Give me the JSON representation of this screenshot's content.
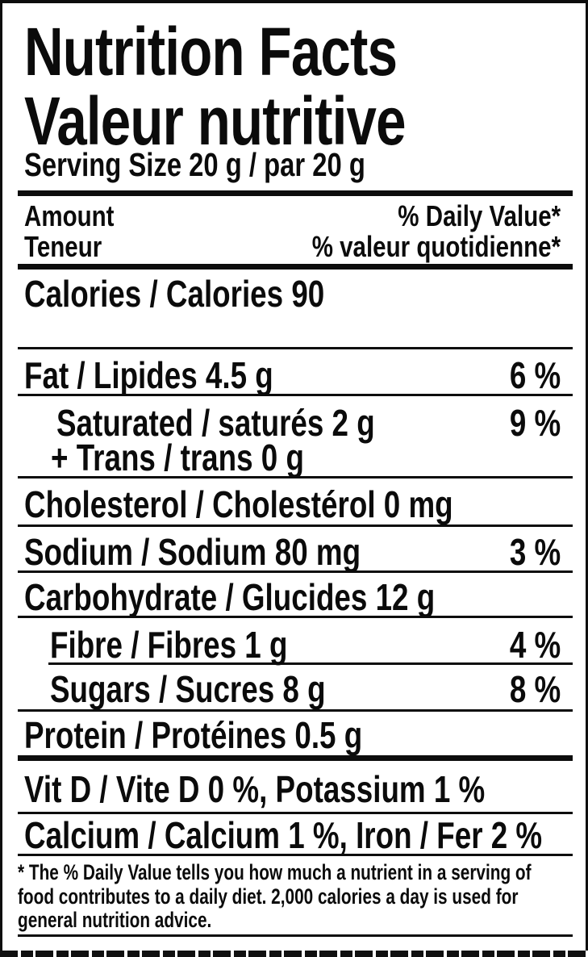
{
  "label": {
    "title_en": "Nutrition Facts",
    "title_fr": "Valeur nutritive",
    "serving": "Serving Size 20 g / par 20 g",
    "header": {
      "amount_en": "Amount",
      "dv_en": "% Daily Value*",
      "amount_fr": "Teneur",
      "dv_fr": "% valeur quotidienne*"
    },
    "calories": "Calories / Calories 90",
    "rows": [
      {
        "name": "Fat / Lipides 4.5 g",
        "dv": "6 %"
      },
      {
        "name": "Saturated / saturés 2 g",
        "name2": "+ Trans / trans 0 g",
        "dv": "9 %"
      },
      {
        "name": "Cholesterol / Cholestérol 0 mg",
        "dv": ""
      },
      {
        "name": "Sodium / Sodium 80 mg",
        "dv": "3 %"
      },
      {
        "name": "Carbohydrate / Glucides 12 g",
        "dv": ""
      },
      {
        "name": "Fibre / Fibres 1 g",
        "dv": "4 %"
      },
      {
        "name": "Sugars / Sucres 8 g",
        "dv": "8 %"
      },
      {
        "name": "Protein / Protéines 0.5 g",
        "dv": ""
      }
    ],
    "micronutrients": [
      {
        "text": "Vit D / Vite D 0 %, Potassium 1 %"
      },
      {
        "text": "Calcium / Calcium 1 %, Iron / Fer 2 %"
      }
    ],
    "footnote_lines": [
      "* The % Daily Value tells you how much a nutrient in a serving of",
      "food contributes to a daily diet. 2,000 calories a day is used for",
      "general nutrition advice."
    ],
    "colors": {
      "ink": "#0b0b0b",
      "paper": "#ffffff"
    }
  }
}
